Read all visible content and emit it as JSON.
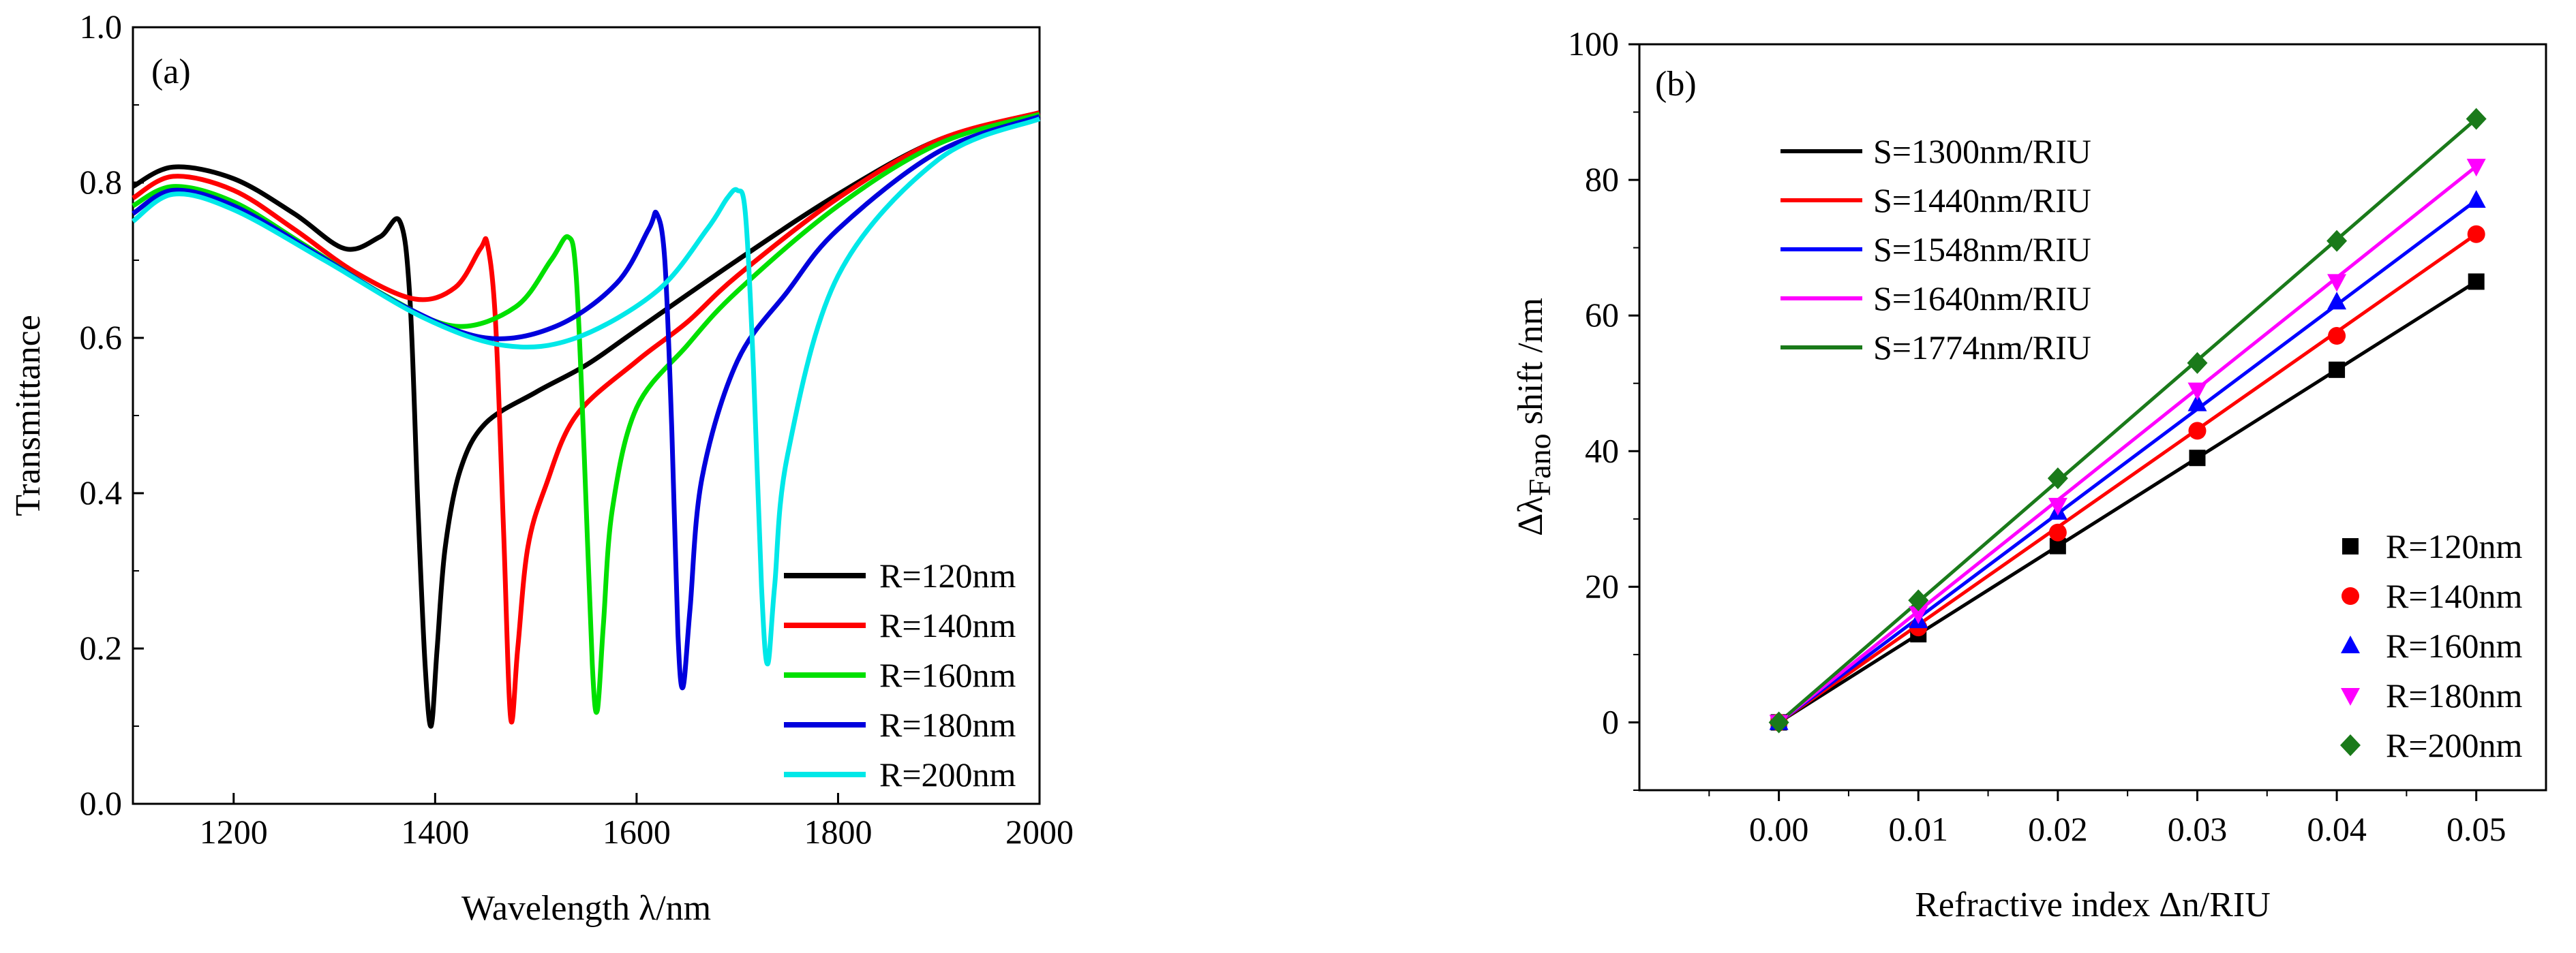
{
  "chart_data": [
    {
      "type": "line",
      "panel_label": "(a)",
      "xlabel": "Wavelength λ/nm",
      "ylabel": "Transmittance",
      "xlim": [
        1100,
        2000
      ],
      "ylim": [
        0.0,
        1.0
      ],
      "xticks": [
        1200,
        1400,
        1600,
        1800,
        2000
      ],
      "yticks": [
        0.0,
        0.2,
        0.4,
        0.6,
        0.8,
        1.0
      ],
      "ytick_labels": [
        "0.0",
        "0.2",
        "0.4",
        "0.6",
        "0.8",
        "1.0"
      ],
      "legend_position": "bottom-right",
      "series": [
        {
          "name": "R=120nm",
          "color": "#000000",
          "x": [
            1100,
            1140,
            1200,
            1260,
            1310,
            1345,
            1365,
            1375,
            1383,
            1390,
            1396,
            1402,
            1410,
            1425,
            1450,
            1500,
            1550,
            1600,
            1700,
            1800,
            1900,
            2000
          ],
          "y": [
            0.795,
            0.82,
            0.805,
            0.76,
            0.715,
            0.73,
            0.75,
            0.65,
            0.38,
            0.18,
            0.1,
            0.2,
            0.33,
            0.43,
            0.49,
            0.53,
            0.565,
            0.61,
            0.7,
            0.785,
            0.855,
            0.89
          ]
        },
        {
          "name": "R=140nm",
          "color": "#ff0000",
          "x": [
            1100,
            1140,
            1200,
            1260,
            1320,
            1380,
            1420,
            1445,
            1452,
            1460,
            1468,
            1475,
            1482,
            1492,
            1510,
            1540,
            1600,
            1650,
            1700,
            1800,
            1900,
            2000
          ],
          "y": [
            0.78,
            0.808,
            0.79,
            0.74,
            0.685,
            0.65,
            0.665,
            0.715,
            0.72,
            0.62,
            0.35,
            0.11,
            0.2,
            0.33,
            0.41,
            0.5,
            0.57,
            0.62,
            0.68,
            0.78,
            0.855,
            0.89
          ]
        },
        {
          "name": "R=160nm",
          "color": "#00e000",
          "x": [
            1100,
            1140,
            1200,
            1270,
            1350,
            1420,
            1480,
            1515,
            1532,
            1540,
            1548,
            1556,
            1561,
            1567,
            1576,
            1600,
            1650,
            1700,
            1800,
            1900,
            2000
          ],
          "y": [
            0.77,
            0.795,
            0.775,
            0.72,
            0.655,
            0.615,
            0.64,
            0.7,
            0.73,
            0.68,
            0.45,
            0.18,
            0.12,
            0.23,
            0.38,
            0.51,
            0.59,
            0.66,
            0.77,
            0.85,
            0.888
          ]
        },
        {
          "name": "R=180nm",
          "color": "#0000dd",
          "x": [
            1100,
            1140,
            1200,
            1280,
            1370,
            1450,
            1520,
            1580,
            1612,
            1620,
            1628,
            1635,
            1641,
            1646,
            1653,
            1665,
            1700,
            1750,
            1800,
            1900,
            2000
          ],
          "y": [
            0.76,
            0.79,
            0.77,
            0.71,
            0.64,
            0.6,
            0.615,
            0.67,
            0.74,
            0.76,
            0.7,
            0.48,
            0.22,
            0.15,
            0.25,
            0.42,
            0.57,
            0.66,
            0.74,
            0.84,
            0.885
          ]
        },
        {
          "name": "R=200nm",
          "color": "#00e8e8",
          "x": [
            1100,
            1140,
            1200,
            1290,
            1390,
            1470,
            1540,
            1620,
            1670,
            1690,
            1700,
            1708,
            1716,
            1724,
            1730,
            1737,
            1750,
            1800,
            1900,
            2000
          ],
          "y": [
            0.75,
            0.785,
            0.765,
            0.7,
            0.625,
            0.59,
            0.6,
            0.66,
            0.74,
            0.78,
            0.79,
            0.76,
            0.56,
            0.28,
            0.18,
            0.28,
            0.45,
            0.68,
            0.83,
            0.882
          ]
        }
      ]
    },
    {
      "type": "scatter",
      "panel_label": "(b)",
      "xlabel": "Refractive index Δn/RIU",
      "ylabel": "ΔλFano shift /nm",
      "xlim": [
        -0.01,
        0.055
      ],
      "ylim": [
        -10,
        100
      ],
      "xticks": [
        0.0,
        0.01,
        0.02,
        0.03,
        0.04,
        0.05
      ],
      "xtick_labels": [
        "0.00",
        "0.01",
        "0.02",
        "0.03",
        "0.04",
        "0.05"
      ],
      "yticks": [
        0,
        20,
        40,
        60,
        80,
        100
      ],
      "x": [
        0.0,
        0.01,
        0.02,
        0.03,
        0.04,
        0.05
      ],
      "series": [
        {
          "name": "R=120nm",
          "fit_label": "S=1300nm/RIU",
          "color": "#000000",
          "marker": "square",
          "values": [
            0,
            13,
            26,
            39,
            52,
            65
          ]
        },
        {
          "name": "R=140nm",
          "fit_label": "S=1440nm/RIU",
          "color": "#ff0000",
          "marker": "circle",
          "values": [
            0,
            14,
            28,
            43,
            57,
            72
          ]
        },
        {
          "name": "R=160nm",
          "fit_label": "S=1548nm/RIU",
          "color": "#0000ff",
          "marker": "triangle-up",
          "values": [
            0,
            15,
            31,
            47,
            62,
            77
          ]
        },
        {
          "name": "R=180nm",
          "fit_label": "S=1640nm/RIU",
          "color": "#ff00ff",
          "marker": "triangle-down",
          "values": [
            0,
            16,
            32,
            49,
            65,
            82
          ]
        },
        {
          "name": "R=200nm",
          "fit_label": "S=1774nm/RIU",
          "color": "#1a7a1a",
          "marker": "diamond",
          "values": [
            0,
            18,
            36,
            53,
            71,
            89
          ]
        }
      ]
    }
  ]
}
